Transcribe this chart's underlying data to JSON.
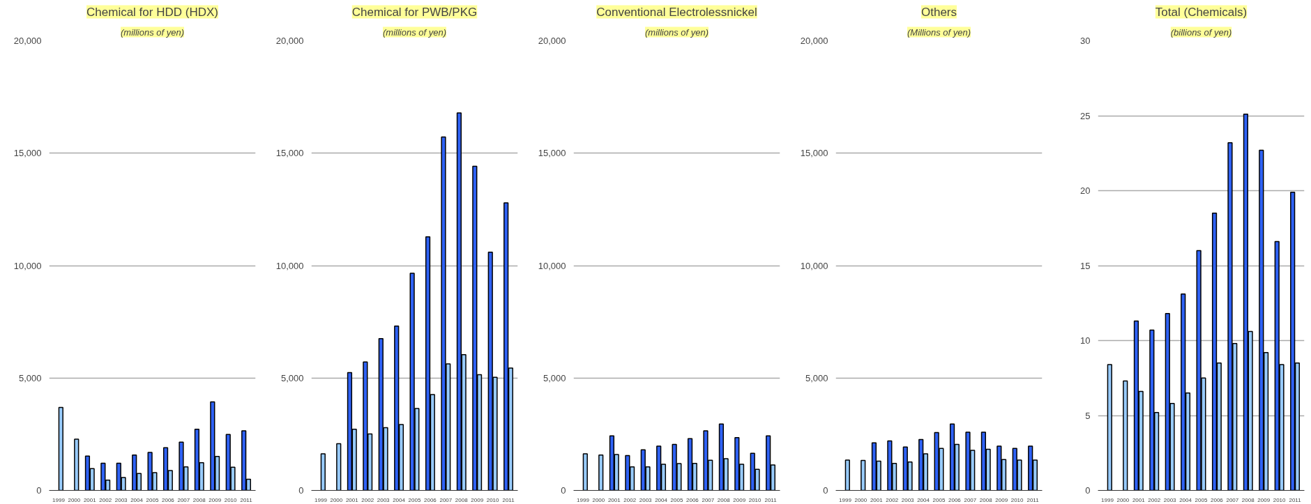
{
  "chart_data": [
    {
      "type": "bar",
      "title": "Chemical for HDD (HDX)",
      "subtitle": "(millions of yen)",
      "categories": [
        "1999",
        "2000",
        "2001",
        "2002",
        "2003",
        "2004",
        "2005",
        "2006",
        "2007",
        "2008",
        "2009",
        "2010",
        "2011"
      ],
      "series": [
        {
          "color": "#2f62f5",
          "values": [
            null,
            null,
            1530,
            1210,
            1210,
            1570,
            1690,
            1900,
            2150,
            2720,
            3940,
            2490,
            2650
          ]
        },
        {
          "color": "#99ccff",
          "values": [
            3690,
            2280,
            970,
            460,
            570,
            750,
            790,
            880,
            1050,
            1230,
            1510,
            1030,
            500
          ]
        }
      ],
      "ylim": [
        0,
        20000
      ],
      "yticks": [
        {
          "value": 0,
          "label": "0"
        },
        {
          "value": 5000,
          "label": "5,000"
        },
        {
          "value": 10000,
          "label": "10,000"
        },
        {
          "value": 15000,
          "label": "15,000"
        },
        {
          "value": 20000,
          "label": "20,000"
        }
      ],
      "grid": "y"
    },
    {
      "type": "bar",
      "title": "Chemical for PWB/PKG",
      "subtitle": "(millions of yen)",
      "categories": [
        "1999",
        "2000",
        "2001",
        "2002",
        "2003",
        "2004",
        "2005",
        "2006",
        "2007",
        "2008",
        "2009",
        "2010",
        "2011"
      ],
      "series": [
        {
          "color": "#2f62f5",
          "values": [
            null,
            null,
            5240,
            5710,
            6750,
            7310,
            9660,
            11280,
            15720,
            16790,
            14420,
            10600,
            12790
          ]
        },
        {
          "color": "#99ccff",
          "values": [
            1630,
            2080,
            2720,
            2510,
            2790,
            2930,
            3640,
            4260,
            5630,
            6040,
            5150,
            5030,
            5440
          ]
        }
      ],
      "ylim": [
        0,
        20000
      ],
      "yticks": [
        {
          "value": 0,
          "label": "0"
        },
        {
          "value": 5000,
          "label": "5,000"
        },
        {
          "value": 10000,
          "label": "10,000"
        },
        {
          "value": 15000,
          "label": "15,000"
        },
        {
          "value": 20000,
          "label": "20,000"
        }
      ],
      "grid": "y"
    },
    {
      "type": "bar",
      "title": "Conventional Electrolessnickel",
      "subtitle": "(millions of yen)",
      "categories": [
        "1999",
        "2000",
        "2001",
        "2002",
        "2003",
        "2004",
        "2005",
        "2006",
        "2007",
        "2008",
        "2009",
        "2010",
        "2011"
      ],
      "series": [
        {
          "color": "#2f62f5",
          "values": [
            null,
            null,
            2430,
            1550,
            1810,
            1970,
            2050,
            2300,
            2650,
            2950,
            2350,
            1650,
            2430
          ]
        },
        {
          "color": "#99ccff",
          "values": [
            1630,
            1570,
            1600,
            1050,
            1050,
            1160,
            1190,
            1200,
            1340,
            1410,
            1160,
            940,
            1130
          ]
        }
      ],
      "ylim": [
        0,
        20000
      ],
      "yticks": [
        {
          "value": 0,
          "label": "0"
        },
        {
          "value": 5000,
          "label": "5,000"
        },
        {
          "value": 10000,
          "label": "10,000"
        },
        {
          "value": 15000,
          "label": "15,000"
        },
        {
          "value": 20000,
          "label": "20,000"
        }
      ],
      "grid": "y"
    },
    {
      "type": "bar",
      "title": "Others",
      "subtitle": "(Millions of yen)",
      "categories": [
        "1999",
        "2000",
        "2001",
        "2002",
        "2003",
        "2004",
        "2005",
        "2006",
        "2007",
        "2008",
        "2009",
        "2010",
        "2011"
      ],
      "series": [
        {
          "color": "#2f62f5",
          "values": [
            null,
            null,
            2120,
            2200,
            1930,
            2260,
            2570,
            2950,
            2590,
            2590,
            1970,
            1870,
            1970
          ]
        },
        {
          "color": "#99ccff",
          "values": [
            1350,
            1330,
            1300,
            1200,
            1260,
            1630,
            1870,
            2050,
            1780,
            1830,
            1370,
            1350,
            1350
          ]
        }
      ],
      "ylim": [
        0,
        20000
      ],
      "yticks": [
        {
          "value": 0,
          "label": "0"
        },
        {
          "value": 5000,
          "label": "5,000"
        },
        {
          "value": 10000,
          "label": "10,000"
        },
        {
          "value": 15000,
          "label": "15,000"
        },
        {
          "value": 20000,
          "label": "20,000"
        }
      ],
      "grid": "y"
    },
    {
      "type": "bar",
      "title": "Total (Chemicals)",
      "subtitle": "(billions of yen)",
      "categories": [
        "1999",
        "2000",
        "2001",
        "2002",
        "2003",
        "2004",
        "2005",
        "2006",
        "2007",
        "2008",
        "2009",
        "2010",
        "2011"
      ],
      "series": [
        {
          "color": "#2f62f5",
          "values": [
            null,
            null,
            11.3,
            10.7,
            11.8,
            13.1,
            16.0,
            18.5,
            23.2,
            25.1,
            22.7,
            16.6,
            19.9
          ]
        },
        {
          "color": "#99ccff",
          "values": [
            8.4,
            7.3,
            6.6,
            5.2,
            5.8,
            6.5,
            7.5,
            8.5,
            9.8,
            10.6,
            9.2,
            8.4,
            8.5
          ]
        }
      ],
      "ylim": [
        0,
        30
      ],
      "yticks": [
        0,
        5,
        10,
        15,
        20,
        25,
        30
      ],
      "grid": "y"
    }
  ]
}
